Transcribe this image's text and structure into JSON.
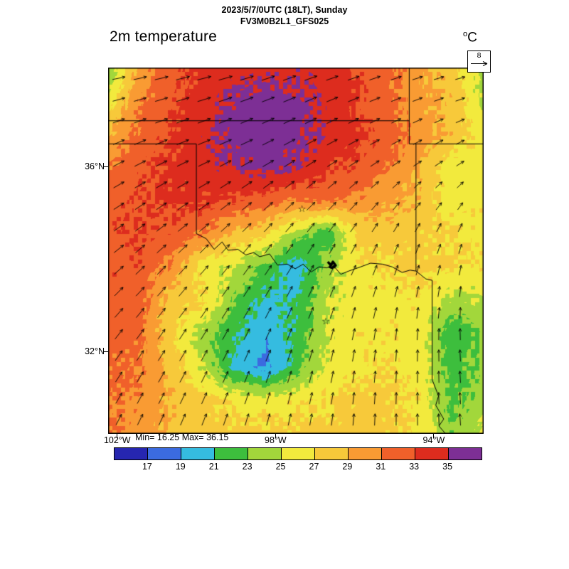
{
  "header": {
    "datetime": "2023/5/7/0UTC (18LT), Sunday",
    "model": "FV3M0B2L1_GFS025"
  },
  "title": "2m temperature",
  "units": {
    "display": "°C",
    "sup": "o",
    "base": "C"
  },
  "wind_reference": {
    "value": "8"
  },
  "axes": {
    "lat_ticks": [
      {
        "label": "36°N",
        "lat": 36
      },
      {
        "label": "32°N",
        "lat": 32
      }
    ],
    "lon_ticks": [
      {
        "label": "102°W",
        "lon": 102
      },
      {
        "label": "98°W",
        "lon": 98
      },
      {
        "label": "94°W",
        "lon": 94
      }
    ]
  },
  "stats": {
    "min_text": "Min= 16.25",
    "max_text": "Max= 36.15"
  },
  "colorbar": {
    "tick_labels": [
      "17",
      "19",
      "21",
      "23",
      "25",
      "27",
      "29",
      "31",
      "33",
      "35"
    ],
    "colors": [
      "#2626b0",
      "#3b6be0",
      "#35bce0",
      "#3dbe3d",
      "#a2d73b",
      "#f2ea3d",
      "#f7c93a",
      "#f99b33",
      "#f0602a",
      "#dd2c1e",
      "#7d2f95"
    ]
  },
  "chart_data": {
    "type": "heatmap",
    "title": "2m temperature",
    "units": "°C",
    "valid_time": "2023/5/7/0UTC (18LT), Sunday",
    "model": "FV3M0B2L1_GFS025",
    "min": 16.25,
    "max": 36.15,
    "levels": [
      17,
      19,
      21,
      23,
      25,
      27,
      29,
      31,
      33,
      35
    ],
    "geo_extent": {
      "lon_west": 102.23,
      "lon_east": 92.74,
      "lat_north": 38.15,
      "lat_south": 30.23
    },
    "temperature_grid": {
      "nrows": 12,
      "ncols": 13,
      "values": [
        [
          23,
          30,
          32,
          33.5,
          34,
          34.5,
          34.5,
          34,
          33,
          31.5,
          29.5,
          28,
          24
        ],
        [
          26,
          31,
          32.5,
          34,
          35.5,
          36,
          35.8,
          34.5,
          33,
          31.5,
          29.5,
          28.5,
          24.5
        ],
        [
          29,
          31.5,
          33,
          34.5,
          35.8,
          36.1,
          35.8,
          34.5,
          33.5,
          32,
          30,
          28.5,
          26
        ],
        [
          31,
          32.5,
          33.5,
          34,
          35,
          35.5,
          35,
          33.5,
          32.5,
          31,
          29,
          25.5,
          26.5
        ],
        [
          32,
          33,
          33.5,
          33.5,
          33,
          32,
          31,
          31.5,
          30.5,
          29.5,
          28.5,
          26,
          26.5
        ],
        [
          32.5,
          33,
          32.5,
          31,
          28.5,
          27.5,
          24,
          21.5,
          27.5,
          28,
          27.5,
          27,
          26.5
        ],
        [
          32.5,
          32.5,
          30.5,
          26,
          25,
          22.5,
          19.5,
          24,
          26.5,
          27,
          27.5,
          27,
          26.5
        ],
        [
          32.5,
          32,
          28,
          27.5,
          23,
          20.5,
          21,
          25,
          26,
          26.5,
          26.5,
          24.5,
          25
        ],
        [
          32,
          31.5,
          27.5,
          24,
          21.5,
          19.5,
          21.5,
          25,
          26.5,
          26.5,
          26,
          21.5,
          23
        ],
        [
          31.5,
          31,
          28.5,
          25,
          20.5,
          18.5,
          22,
          25.5,
          26.5,
          27,
          26,
          22,
          23.5
        ],
        [
          31.5,
          30.5,
          29,
          27.5,
          26.5,
          26,
          26.5,
          27,
          27.5,
          27.5,
          26.5,
          22.5,
          24
        ],
        [
          31,
          30,
          28.5,
          28,
          27.5,
          27.5,
          27.5,
          27.5,
          28,
          27.5,
          26.5,
          23,
          25.5
        ]
      ]
    },
    "wind": {
      "reference_speed": 8,
      "uv_grid": [
        [
          [
            6,
            1
          ],
          [
            6.5,
            1.5
          ],
          [
            6,
            2
          ],
          [
            5,
            1.5
          ],
          [
            4.5,
            1
          ]
        ],
        [
          [
            5,
            2.5
          ],
          [
            5.5,
            2.5
          ],
          [
            5,
            3
          ],
          [
            4,
            2.5
          ],
          [
            3.5,
            2
          ]
        ],
        [
          [
            4.5,
            3.5
          ],
          [
            4,
            4
          ],
          [
            3,
            4.5
          ],
          [
            2,
            4.5
          ],
          [
            1,
            4.5
          ]
        ],
        [
          [
            3.5,
            4.5
          ],
          [
            3,
            5
          ],
          [
            2,
            5.5
          ],
          [
            0.5,
            5.5
          ],
          [
            -0.5,
            5.5
          ]
        ],
        [
          [
            2.5,
            5
          ],
          [
            2,
            5.5
          ],
          [
            1,
            5.5
          ],
          [
            0,
            5.5
          ],
          [
            -0.5,
            5.5
          ]
        ]
      ]
    },
    "markers": [
      {
        "symbol": "open-star",
        "char": "☆",
        "lon": 97.33,
        "lat": 35.08
      },
      {
        "symbol": "open-star",
        "char": "☆",
        "lon": 96.73,
        "lat": 32.65
      }
    ],
    "boundaries": [
      {
        "name": "kansas-oklahoma-border-37N",
        "points": [
          [
            102.23,
            37
          ],
          [
            94.62,
            37
          ]
        ]
      },
      {
        "name": "panhandle-border-36-5N",
        "points": [
          [
            102.23,
            36.5
          ],
          [
            100,
            36.5
          ]
        ]
      },
      {
        "name": "texas-panhandle-east-100W",
        "points": [
          [
            100,
            36.5
          ],
          [
            100,
            34.56
          ]
        ]
      },
      {
        "name": "missouri-west-border",
        "points": [
          [
            94.62,
            38.15
          ],
          [
            94.62,
            36.5
          ]
        ]
      },
      {
        "name": "missouri-arkansas-border-36-5N",
        "points": [
          [
            94.62,
            36.5
          ],
          [
            92.74,
            36.5
          ]
        ]
      },
      {
        "name": "arkansas-west-border",
        "points": [
          [
            94.45,
            36.5
          ],
          [
            94.45,
            33.75
          ]
        ]
      },
      {
        "name": "red-river-border",
        "points": [
          [
            100,
            34.56
          ],
          [
            99.75,
            34.45
          ],
          [
            99.55,
            34.22
          ],
          [
            99.35,
            34.38
          ],
          [
            99.2,
            34.2
          ],
          [
            98.95,
            34.22
          ],
          [
            98.75,
            34.1
          ],
          [
            98.55,
            34.15
          ],
          [
            98.4,
            34.06
          ],
          [
            98.15,
            34.12
          ],
          [
            97.95,
            33.88
          ],
          [
            97.7,
            33.9
          ],
          [
            97.5,
            33.8
          ],
          [
            97.3,
            33.9
          ],
          [
            97.1,
            33.73
          ],
          [
            96.9,
            33.84
          ],
          [
            96.7,
            33.82
          ],
          [
            96.55,
            33.88
          ],
          [
            96.35,
            33.68
          ],
          [
            96.15,
            33.75
          ],
          [
            95.85,
            33.84
          ],
          [
            95.6,
            33.92
          ],
          [
            95.3,
            33.9
          ],
          [
            95.05,
            33.84
          ],
          [
            94.8,
            33.72
          ],
          [
            94.6,
            33.77
          ],
          [
            94.45,
            33.75
          ],
          [
            94.2,
            33.58
          ],
          [
            94.04,
            33.55
          ]
        ]
      },
      {
        "name": "texas-east-border",
        "points": [
          [
            94.04,
            33.55
          ],
          [
            94.04,
            31.4
          ],
          [
            93.88,
            31.05
          ],
          [
            93.95,
            30.85
          ],
          [
            93.75,
            30.55
          ],
          [
            93.87,
            30.4
          ],
          [
            93.7,
            30.23
          ]
        ]
      }
    ],
    "lake": {
      "name": "lake-texoma-squiggle",
      "points": [
        [
          96.68,
          33.95
        ],
        [
          96.6,
          33.88
        ],
        [
          96.55,
          33.95
        ],
        [
          96.48,
          33.87
        ],
        [
          96.57,
          33.82
        ],
        [
          96.65,
          33.85
        ]
      ]
    }
  }
}
